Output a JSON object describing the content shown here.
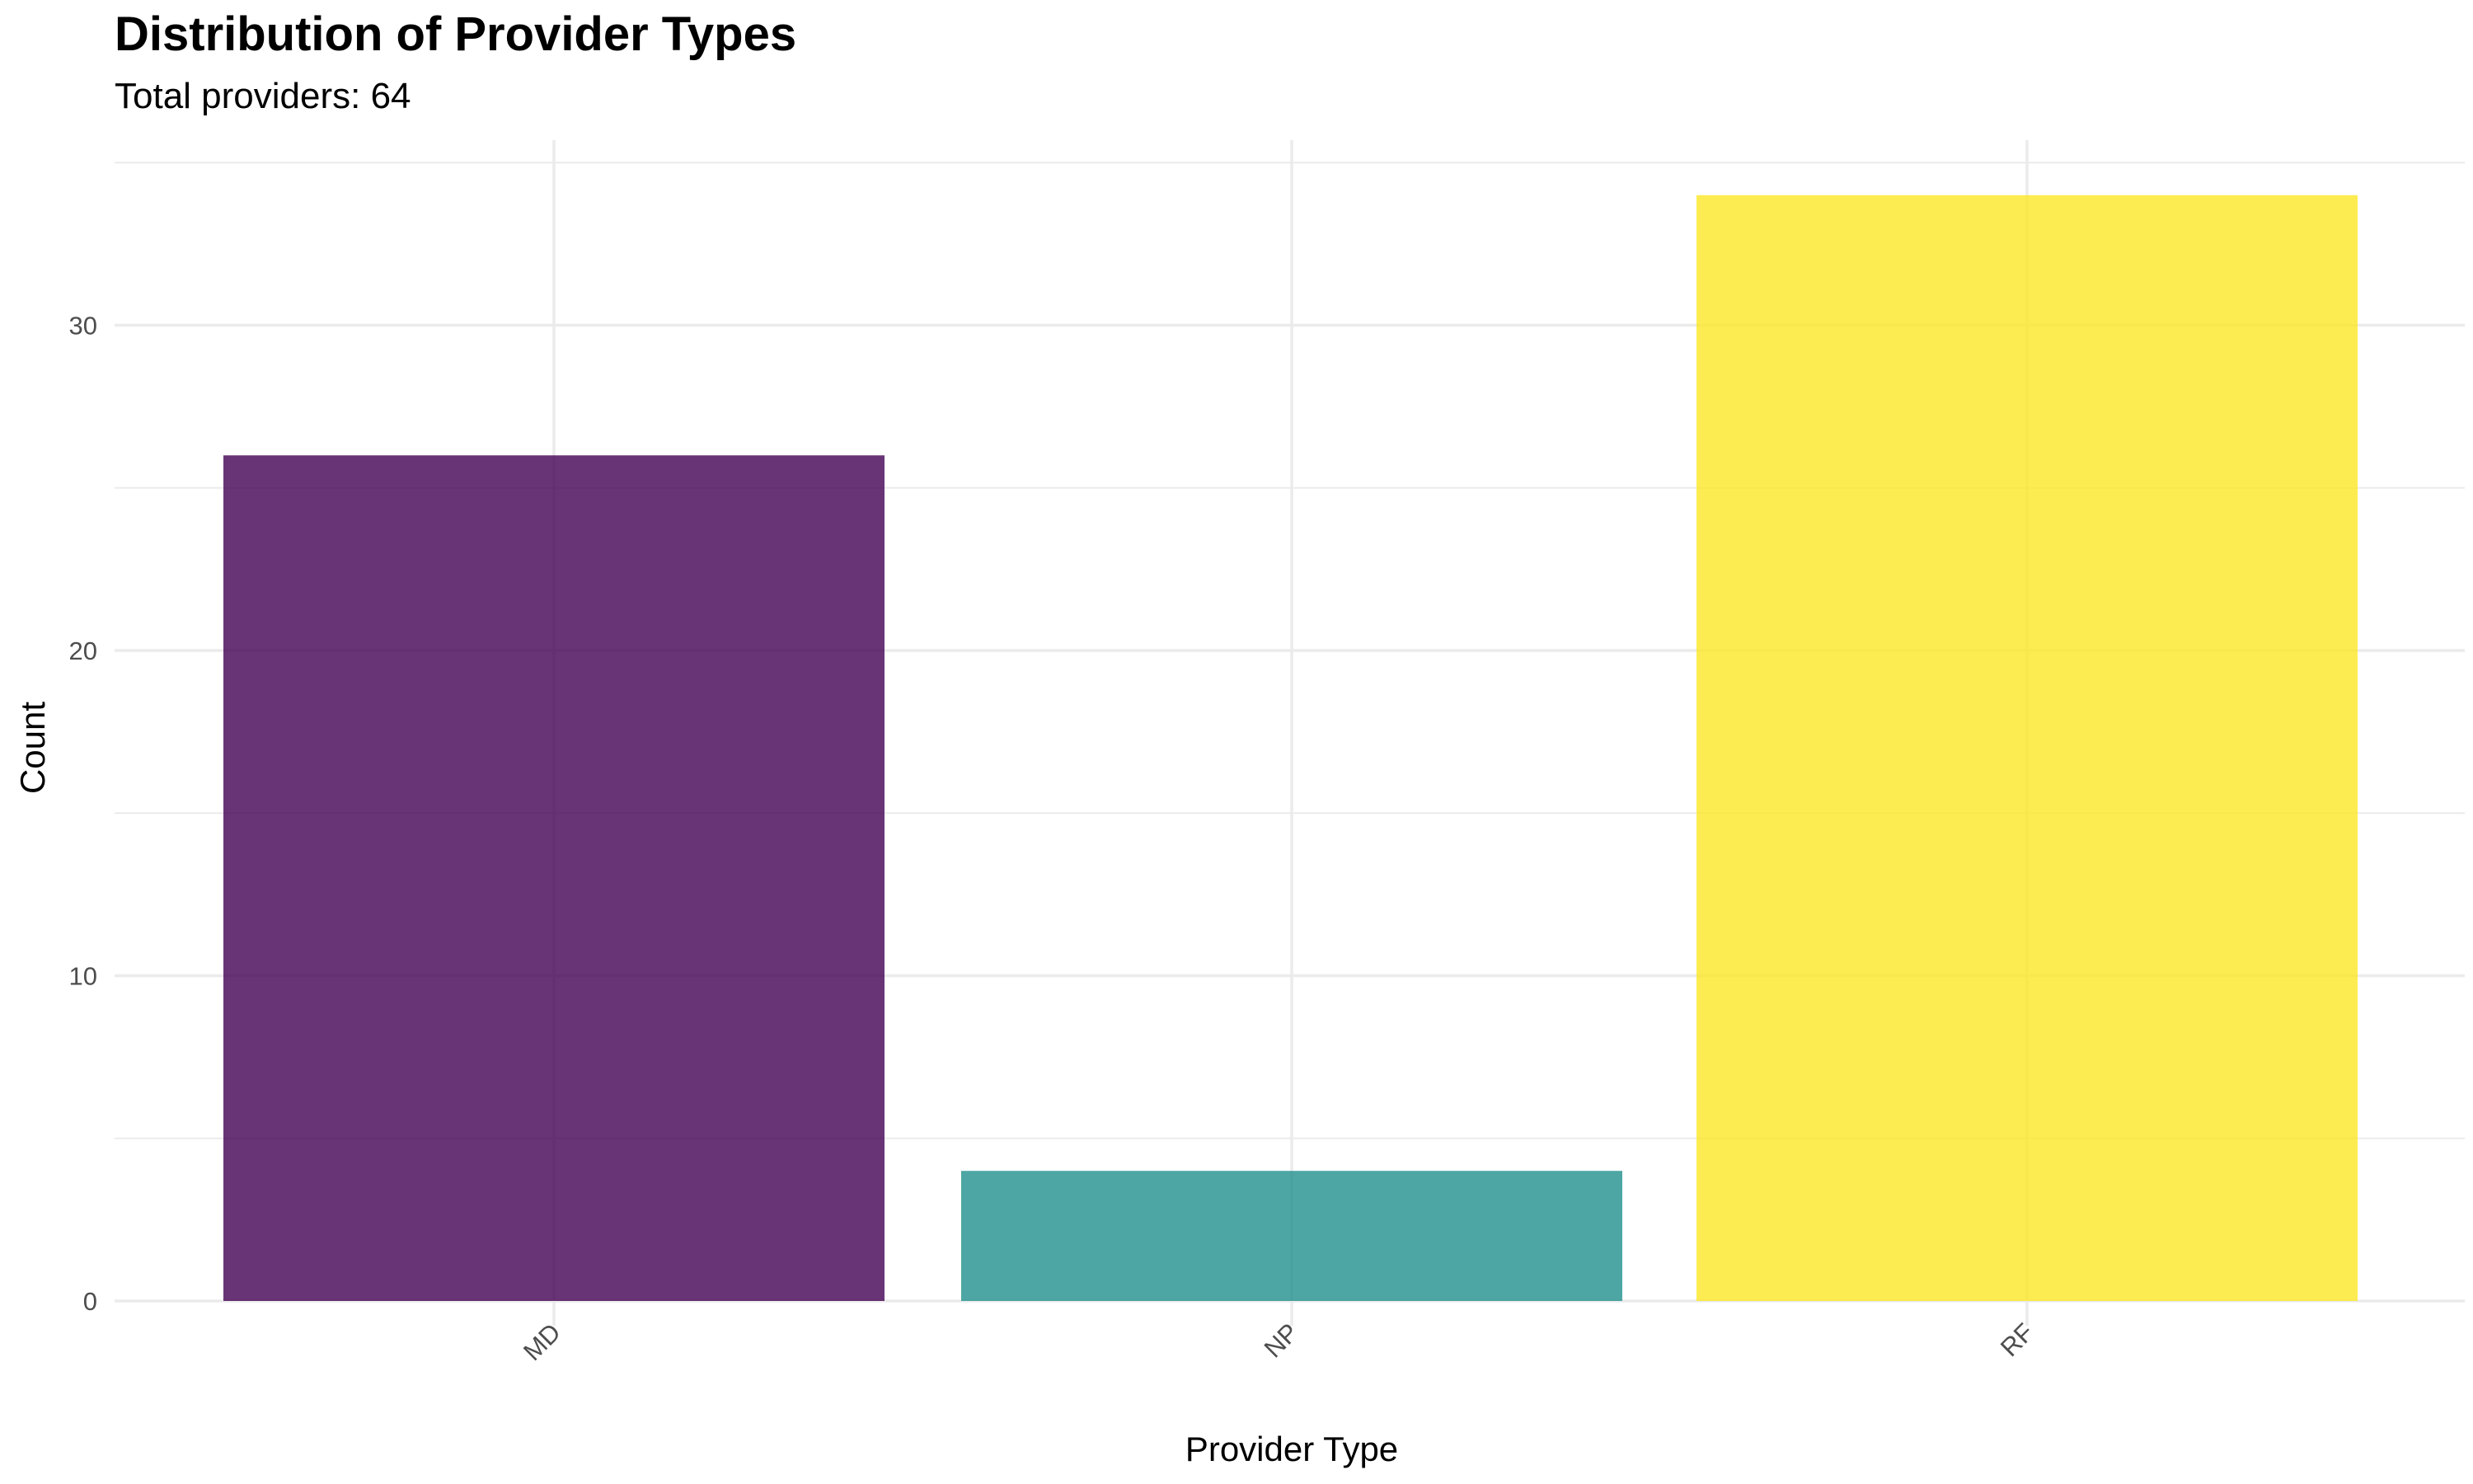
{
  "chart_data": {
    "type": "bar",
    "title": "Distribution of Provider Types",
    "subtitle": "Total providers: 64",
    "xlabel": "Provider Type",
    "ylabel": "Count",
    "categories": [
      "MD",
      "NP",
      "RF"
    ],
    "values": [
      26,
      4,
      34
    ],
    "colors": [
      "#440154",
      "#21908C",
      "#FDE725"
    ],
    "bar_opacity": 0.8,
    "ylim": [
      0,
      35
    ],
    "yticks": [
      0,
      10,
      20,
      30
    ],
    "grid": true,
    "legend": "none",
    "x_tick_rotation_deg": 45,
    "background": "#ffffff",
    "gridline_color": "#ebebeb",
    "tick_label_color": "#4d4d4d"
  }
}
